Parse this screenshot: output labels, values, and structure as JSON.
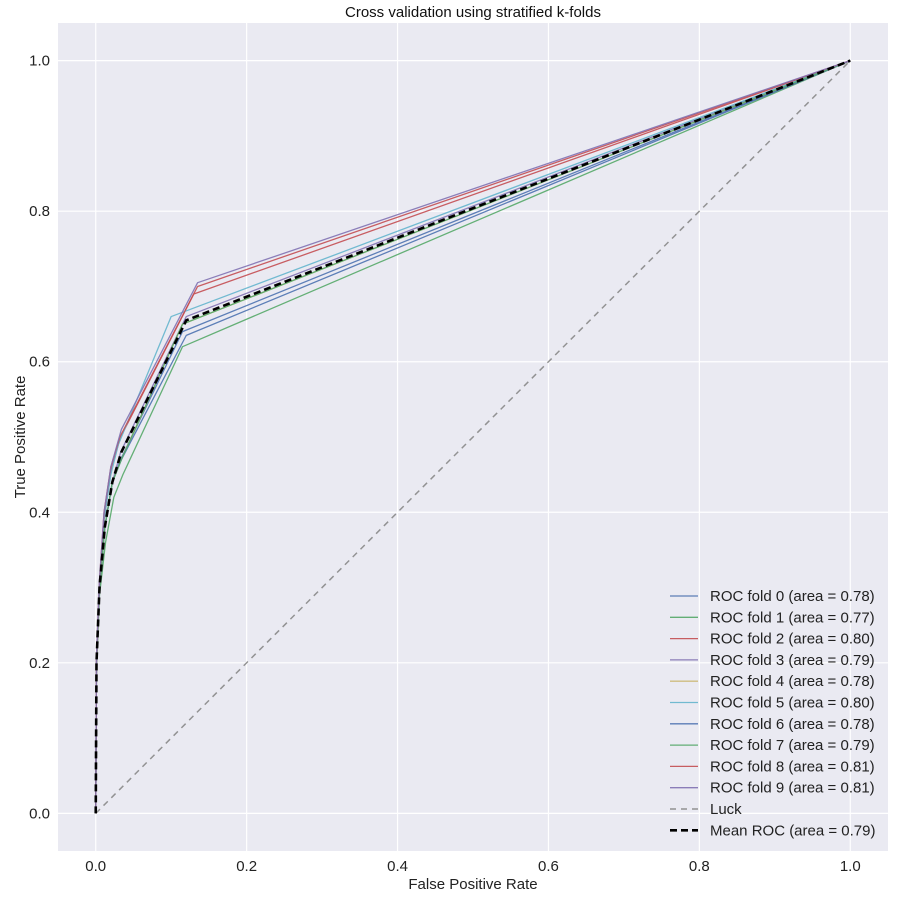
{
  "chart_data": {
    "type": "line",
    "title": "Cross validation using stratified k-folds",
    "xlabel": "False Positive Rate",
    "ylabel": "True Positive Rate",
    "xlim": [
      -0.05,
      1.05
    ],
    "ylim": [
      -0.05,
      1.05
    ],
    "xticks": [
      "0.0",
      "0.2",
      "0.4",
      "0.6",
      "0.8",
      "1.0"
    ],
    "yticks": [
      "0.0",
      "0.2",
      "0.4",
      "0.6",
      "0.8",
      "1.0"
    ],
    "grid": true,
    "legend_position": "lower-right",
    "series": [
      {
        "name": "ROC fold 0 (area = 0.78)",
        "color": "#4C72B0",
        "style": "solid",
        "x": [
          0,
          0.001,
          0.005,
          0.012,
          0.022,
          0.033,
          0.115,
          1
        ],
        "y": [
          0,
          0.2,
          0.3,
          0.38,
          0.44,
          0.47,
          0.64,
          1
        ]
      },
      {
        "name": "ROC fold 1 (area = 0.77)",
        "color": "#55A868",
        "style": "solid",
        "x": [
          0,
          0.001,
          0.005,
          0.013,
          0.024,
          0.036,
          0.115,
          1
        ],
        "y": [
          0,
          0.19,
          0.29,
          0.36,
          0.42,
          0.45,
          0.62,
          1
        ]
      },
      {
        "name": "ROC fold 2 (area = 0.80)",
        "color": "#C44E52",
        "style": "solid",
        "x": [
          0,
          0.001,
          0.005,
          0.011,
          0.021,
          0.033,
          0.13,
          1
        ],
        "y": [
          0,
          0.2,
          0.3,
          0.39,
          0.46,
          0.5,
          0.69,
          1
        ]
      },
      {
        "name": "ROC fold 3 (area = 0.79)",
        "color": "#8172B2",
        "style": "solid",
        "x": [
          0,
          0.001,
          0.005,
          0.012,
          0.022,
          0.033,
          0.12,
          1
        ],
        "y": [
          0,
          0.2,
          0.3,
          0.38,
          0.44,
          0.48,
          0.66,
          1
        ]
      },
      {
        "name": "ROC fold 4 (area = 0.78)",
        "color": "#CCB974",
        "style": "solid",
        "x": [
          0,
          0.001,
          0.005,
          0.012,
          0.022,
          0.034,
          0.115,
          1
        ],
        "y": [
          0,
          0.2,
          0.3,
          0.38,
          0.44,
          0.47,
          0.65,
          1
        ]
      },
      {
        "name": "ROC fold 5 (area = 0.80)",
        "color": "#64B5CD",
        "style": "solid",
        "x": [
          0,
          0.001,
          0.005,
          0.011,
          0.02,
          0.03,
          0.1,
          1
        ],
        "y": [
          0,
          0.21,
          0.31,
          0.39,
          0.45,
          0.49,
          0.66,
          1
        ]
      },
      {
        "name": "ROC fold 6 (area = 0.78)",
        "color": "#4C72B0",
        "style": "solid",
        "x": [
          0,
          0.001,
          0.005,
          0.012,
          0.022,
          0.034,
          0.12,
          1
        ],
        "y": [
          0,
          0.2,
          0.3,
          0.38,
          0.44,
          0.47,
          0.635,
          1
        ]
      },
      {
        "name": "ROC fold 7 (area = 0.79)",
        "color": "#55A868",
        "style": "solid",
        "x": [
          0,
          0.001,
          0.005,
          0.012,
          0.022,
          0.034,
          0.115,
          1
        ],
        "y": [
          0,
          0.2,
          0.3,
          0.38,
          0.44,
          0.47,
          0.65,
          1
        ]
      },
      {
        "name": "ROC fold 8 (area = 0.81)",
        "color": "#C44E52",
        "style": "solid",
        "x": [
          0,
          0.001,
          0.005,
          0.011,
          0.02,
          0.032,
          0.135,
          1
        ],
        "y": [
          0,
          0.21,
          0.31,
          0.4,
          0.46,
          0.5,
          0.7,
          1
        ]
      },
      {
        "name": "ROC fold 9 (area = 0.81)",
        "color": "#8172B2",
        "style": "solid",
        "x": [
          0,
          0.001,
          0.005,
          0.011,
          0.02,
          0.034,
          0.135,
          1
        ],
        "y": [
          0,
          0.21,
          0.31,
          0.4,
          0.46,
          0.51,
          0.705,
          1
        ]
      },
      {
        "name": "Luck",
        "color": "#888888",
        "style": "dashed",
        "x": [
          0,
          1
        ],
        "y": [
          0,
          1
        ]
      },
      {
        "name": "Mean ROC (area = 0.79)",
        "color": "#000000",
        "style": "dashed-bold",
        "x": [
          0,
          0.001,
          0.005,
          0.012,
          0.022,
          0.034,
          0.12,
          1
        ],
        "y": [
          0,
          0.2,
          0.3,
          0.38,
          0.44,
          0.48,
          0.655,
          1
        ]
      }
    ]
  }
}
